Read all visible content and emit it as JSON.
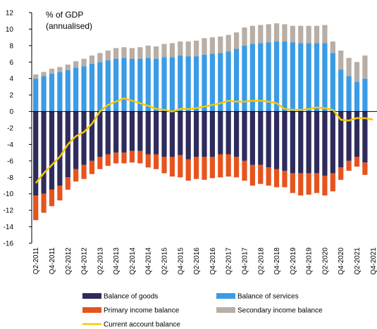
{
  "chart_data": {
    "type": "bar-line",
    "annotations": [
      "% of GDP",
      "(annualised)"
    ],
    "categories": [
      "Q2-2011",
      null,
      "Q4-2011",
      null,
      "Q2-2012",
      null,
      "Q4-2012",
      null,
      "Q2-2013",
      null,
      "Q4-2013",
      null,
      "Q2-2014",
      null,
      "Q4-2014",
      null,
      "Q2-2015",
      null,
      "Q4-2015",
      null,
      "Q2-2016",
      null,
      "Q4-2016",
      null,
      "Q2-2017",
      null,
      "Q4-2017",
      null,
      "Q2-2018",
      null,
      "Q4-2018",
      null,
      "Q2-2019",
      null,
      "Q4-2019",
      null,
      "Q2-2020",
      null,
      "Q4-2020",
      null,
      "Q2-2021",
      null,
      "Q4-2021"
    ],
    "series": [
      {
        "name": "Balance of goods",
        "color": "#2e2c5c",
        "kind": "bar",
        "values": [
          -10.2,
          -10,
          -9.5,
          -9,
          -8,
          -7,
          -6.5,
          -6,
          -5.5,
          -5.2,
          -5,
          -5,
          -4.8,
          -4.8,
          -5.2,
          -5.2,
          -5.5,
          -5.5,
          -5.3,
          -5.8,
          -5.5,
          -5.5,
          -5.5,
          -5.2,
          -5.2,
          -5.5,
          -6,
          -6.5,
          -6.5,
          -6.8,
          -7,
          -7.2,
          -7.5,
          -7.5,
          -7.5,
          -7.5,
          -7.8,
          -7.5,
          -6.8,
          -6,
          -5.5,
          -6.2,
          null
        ]
      },
      {
        "name": "Balance of services",
        "color": "#3a9be6",
        "kind": "bar",
        "values": [
          4,
          4.3,
          4.6,
          4.8,
          5,
          5.3,
          5.5,
          5.8,
          6.0,
          6.2,
          6.4,
          6.5,
          6.4,
          6.4,
          6.5,
          6.4,
          6.6,
          6.6,
          6.8,
          6.7,
          6.7,
          6.9,
          7.0,
          7.1,
          7.3,
          7.6,
          8.0,
          8.2,
          8.3,
          8.4,
          8.5,
          8.5,
          8.4,
          8.3,
          8.3,
          8.3,
          8.3,
          7.1,
          5.1,
          4.3,
          3.6,
          4.0,
          null
        ]
      },
      {
        "name": "Primary income balance",
        "color": "#e6541e",
        "kind": "bar",
        "values": [
          -3,
          -2.3,
          -2,
          -1.8,
          -1.5,
          -1.5,
          -1.7,
          -1.6,
          -1.5,
          -1.4,
          -1.3,
          -1.3,
          -1.4,
          -1.5,
          -1.6,
          -1.8,
          -2,
          -2.4,
          -2.7,
          -2.6,
          -2.7,
          -2.8,
          -2.6,
          -2.8,
          -2.7,
          -2.5,
          -2.4,
          -2.5,
          -2.3,
          -2.2,
          -2.2,
          -2.0,
          -2.4,
          -2.7,
          -2.6,
          -2.4,
          -2.4,
          -2.2,
          -1.5,
          -1.2,
          -1.2,
          -1.5,
          null
        ]
      },
      {
        "name": "Secondary income balance",
        "color": "#b8aea5",
        "kind": "bar",
        "values": [
          0.5,
          0.5,
          0.6,
          0.6,
          0.7,
          0.8,
          0.9,
          1.0,
          1.1,
          1.2,
          1.3,
          1.3,
          1.3,
          1.4,
          1.5,
          1.5,
          1.6,
          1.7,
          1.7,
          1.8,
          1.9,
          2.0,
          2.0,
          2.0,
          2.0,
          2.0,
          2.2,
          2.2,
          2.2,
          2.2,
          2.2,
          2.1,
          2.0,
          2.1,
          2.1,
          2.1,
          2.2,
          1.4,
          2.3,
          2.2,
          2.4,
          2.8,
          null
        ]
      },
      {
        "name": "Current account balance",
        "color": "#f5c800",
        "kind": "line",
        "values": [
          -8.7,
          -7.5,
          -6.5,
          -5.5,
          -4,
          -3,
          -2.5,
          -1.5,
          0,
          0.8,
          1.2,
          1.6,
          1.3,
          1.0,
          0.7,
          0.3,
          0.2,
          0,
          0.3,
          0.3,
          0.4,
          0.6,
          0.8,
          1.0,
          1.3,
          1.2,
          1.2,
          1.3,
          1.3,
          1.2,
          1.0,
          0.3,
          0.2,
          0.2,
          0.3,
          0.5,
          0.4,
          0.2,
          -1.0,
          -1.1,
          -0.8,
          -0.8,
          -1.0
        ]
      }
    ],
    "ylim": [
      -16,
      12
    ],
    "yticks": [
      -16,
      -14,
      -12,
      -10,
      -8,
      -6,
      -4,
      -2,
      0,
      2,
      4,
      6,
      8,
      10,
      12
    ]
  }
}
